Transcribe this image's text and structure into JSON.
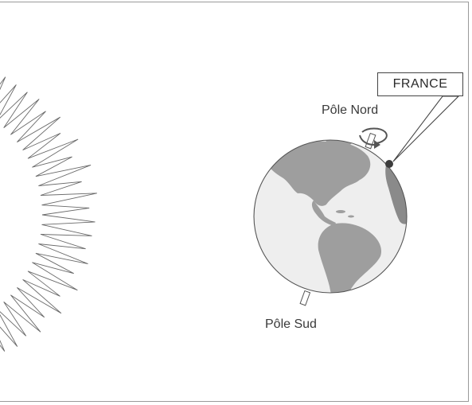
{
  "labels": {
    "north_pole": "Pôle Nord",
    "south_pole": "Pôle Sud",
    "france": "FRANCE"
  },
  "colors": {
    "ocean_day": "#eeeeee",
    "night_side": "#c4c4c4",
    "land_day": "#9e9e9e",
    "land_night": "#8a8a8a",
    "outline": "#555555",
    "france_dot": "#3c3c3c"
  },
  "icons": {
    "sun": "sun-icon",
    "earth": "earth-globe",
    "rotation": "rotation-arrow-icon"
  }
}
